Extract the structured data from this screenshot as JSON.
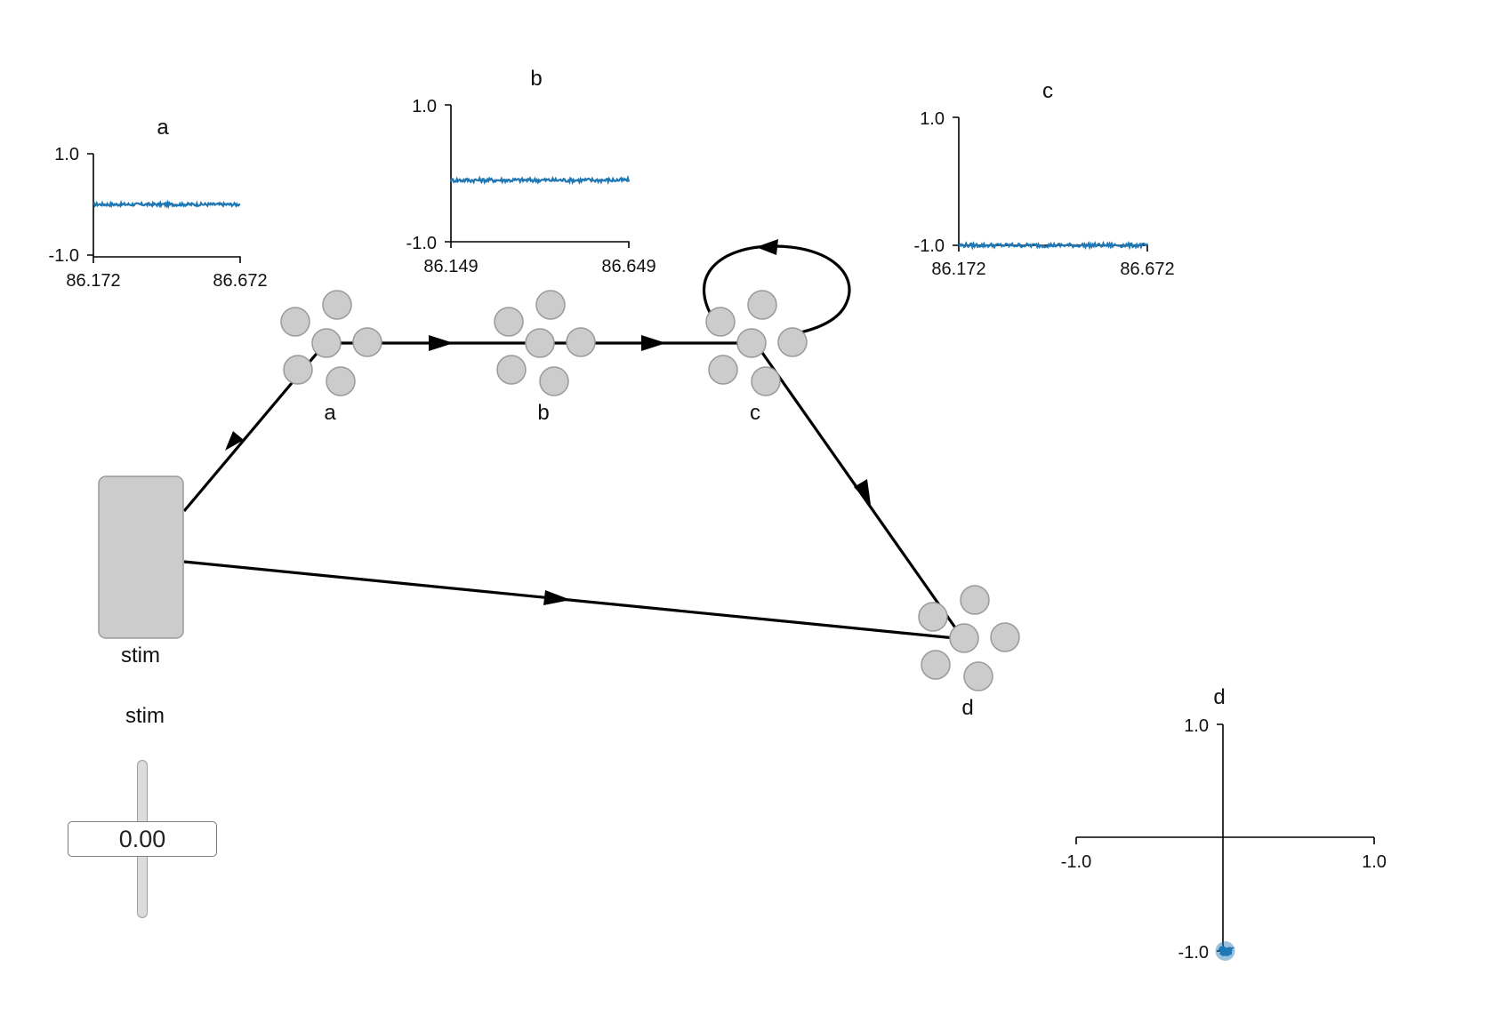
{
  "network": {
    "nodes": [
      {
        "id": "stim",
        "label": "stim",
        "kind": "input"
      },
      {
        "id": "a",
        "label": "a",
        "kind": "ensemble"
      },
      {
        "id": "b",
        "label": "b",
        "kind": "ensemble"
      },
      {
        "id": "c",
        "label": "c",
        "kind": "ensemble"
      },
      {
        "id": "d",
        "label": "d",
        "kind": "ensemble"
      }
    ],
    "edges": [
      {
        "from": "stim",
        "to": "a"
      },
      {
        "from": "a",
        "to": "b"
      },
      {
        "from": "b",
        "to": "c"
      },
      {
        "from": "c",
        "to": "c"
      },
      {
        "from": "c",
        "to": "d"
      },
      {
        "from": "stim",
        "to": "d"
      }
    ]
  },
  "slider": {
    "title": "stim",
    "value": "0.00",
    "level": 0.5
  },
  "chart_data": [
    {
      "type": "line",
      "title": "a",
      "ylim": [
        -1.0,
        1.0
      ],
      "yticks": [
        "1.0",
        "-1.0"
      ],
      "xticks": [
        "86.172",
        "86.672"
      ],
      "xlim": [
        86.172,
        86.672
      ],
      "series": [
        {
          "mean": 0.0,
          "noise": 0.03
        }
      ],
      "color": "#1f77b4"
    },
    {
      "type": "line",
      "title": "b",
      "ylim": [
        -1.0,
        1.0
      ],
      "yticks": [
        "1.0",
        "-1.0"
      ],
      "xticks": [
        "86.149",
        "86.649"
      ],
      "xlim": [
        86.149,
        86.649
      ],
      "series": [
        {
          "mean": -0.1,
          "noise": 0.03
        }
      ],
      "color": "#1f77b4"
    },
    {
      "type": "line",
      "title": "c",
      "ylim": [
        -1.0,
        1.0
      ],
      "yticks": [
        "1.0",
        "-1.0"
      ],
      "xticks": [
        "86.172",
        "86.672"
      ],
      "xlim": [
        86.172,
        86.672
      ],
      "series": [
        {
          "mean": -1.0,
          "noise": 0.03
        }
      ],
      "color": "#1f77b4"
    },
    {
      "type": "scatter",
      "title": "d",
      "xlim": [
        -1.0,
        1.0
      ],
      "ylim": [
        -1.0,
        1.0
      ],
      "xticks": [
        "-1.0",
        "1.0"
      ],
      "yticks": [
        "1.0",
        "-1.0"
      ],
      "points": [
        {
          "x": 0.0,
          "y": -1.0
        }
      ],
      "color": "#1f77b4"
    }
  ]
}
